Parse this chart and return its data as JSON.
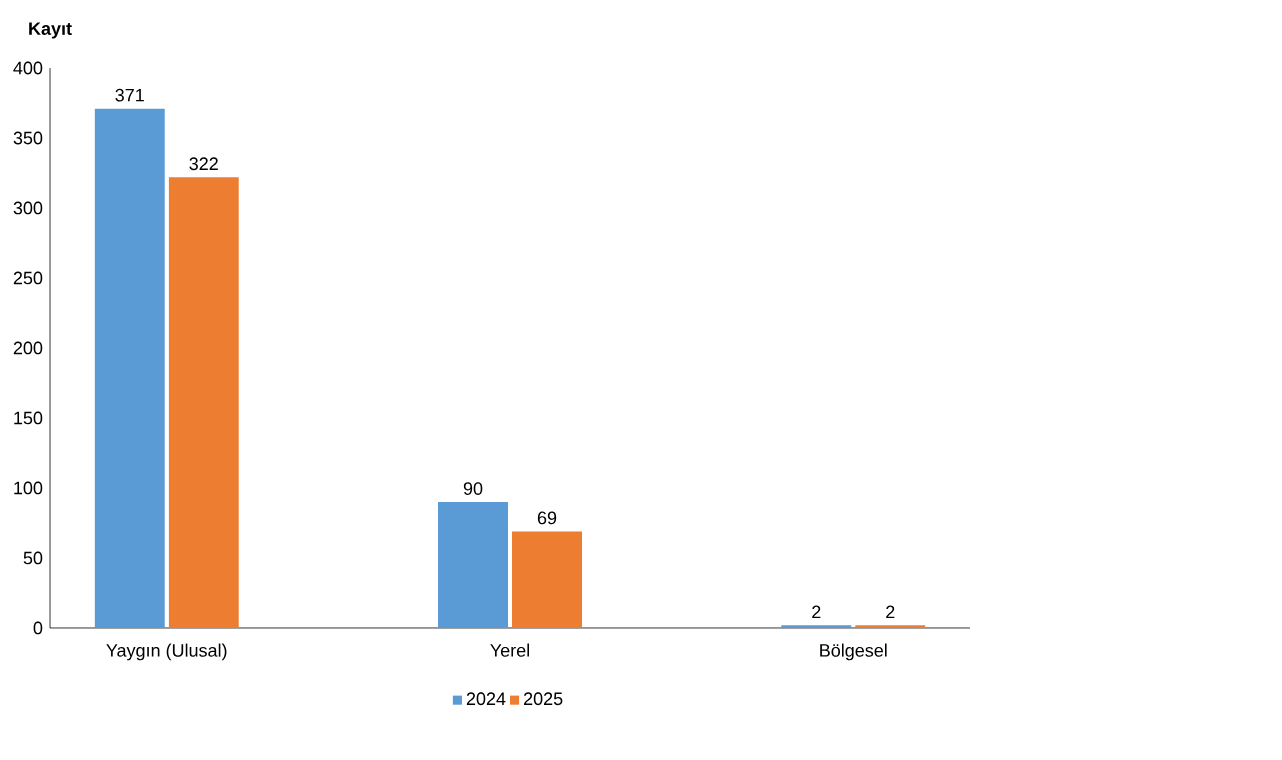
{
  "chart_data": {
    "type": "bar",
    "ylabel": "Kayıt",
    "categories": [
      "Yaygın (Ulusal)",
      "Yerel",
      "Bölgesel"
    ],
    "series": [
      {
        "name": "2024",
        "color": "#5b9bd5",
        "values": [
          371,
          90,
          2
        ]
      },
      {
        "name": "2025",
        "color": "#ed7d31",
        "values": [
          322,
          69,
          2
        ]
      }
    ],
    "ylim": [
      0,
      400
    ],
    "yticks": [
      0,
      50,
      100,
      150,
      200,
      250,
      300,
      350,
      400
    ],
    "data_labels": true,
    "legend": "bottom",
    "grid": false
  }
}
